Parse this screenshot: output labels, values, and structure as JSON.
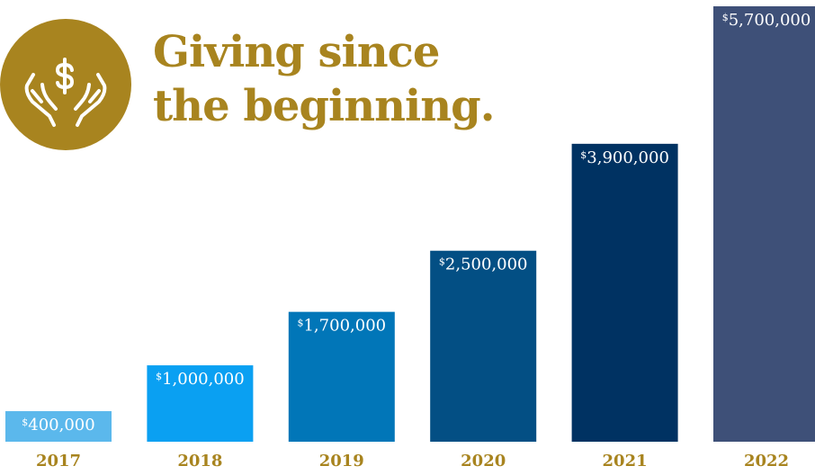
{
  "header": {
    "title_line1": "Giving since",
    "title_line2": "the beginning.",
    "accent_color": "#a8841f",
    "logo_icon": "hands-holding-dollar-icon"
  },
  "chart_data": {
    "type": "bar",
    "categories": [
      "2017",
      "2018",
      "2019",
      "2020",
      "2021",
      "2022"
    ],
    "values": [
      400000,
      1000000,
      1700000,
      2500000,
      3900000,
      5700000
    ],
    "labels": [
      "400,000",
      "1,000,000",
      "1,700,000",
      "2,500,000",
      "3,900,000",
      "5,700,000"
    ],
    "currency_symbol": "$",
    "colors": [
      "#5bb8ec",
      "#0aa0f2",
      "#0176b8",
      "#034f84",
      "#003262",
      "#3e5078"
    ],
    "title": "Giving since the beginning.",
    "xlabel": "",
    "ylabel": "",
    "ylim": [
      0,
      5700000
    ],
    "grid": false
  }
}
